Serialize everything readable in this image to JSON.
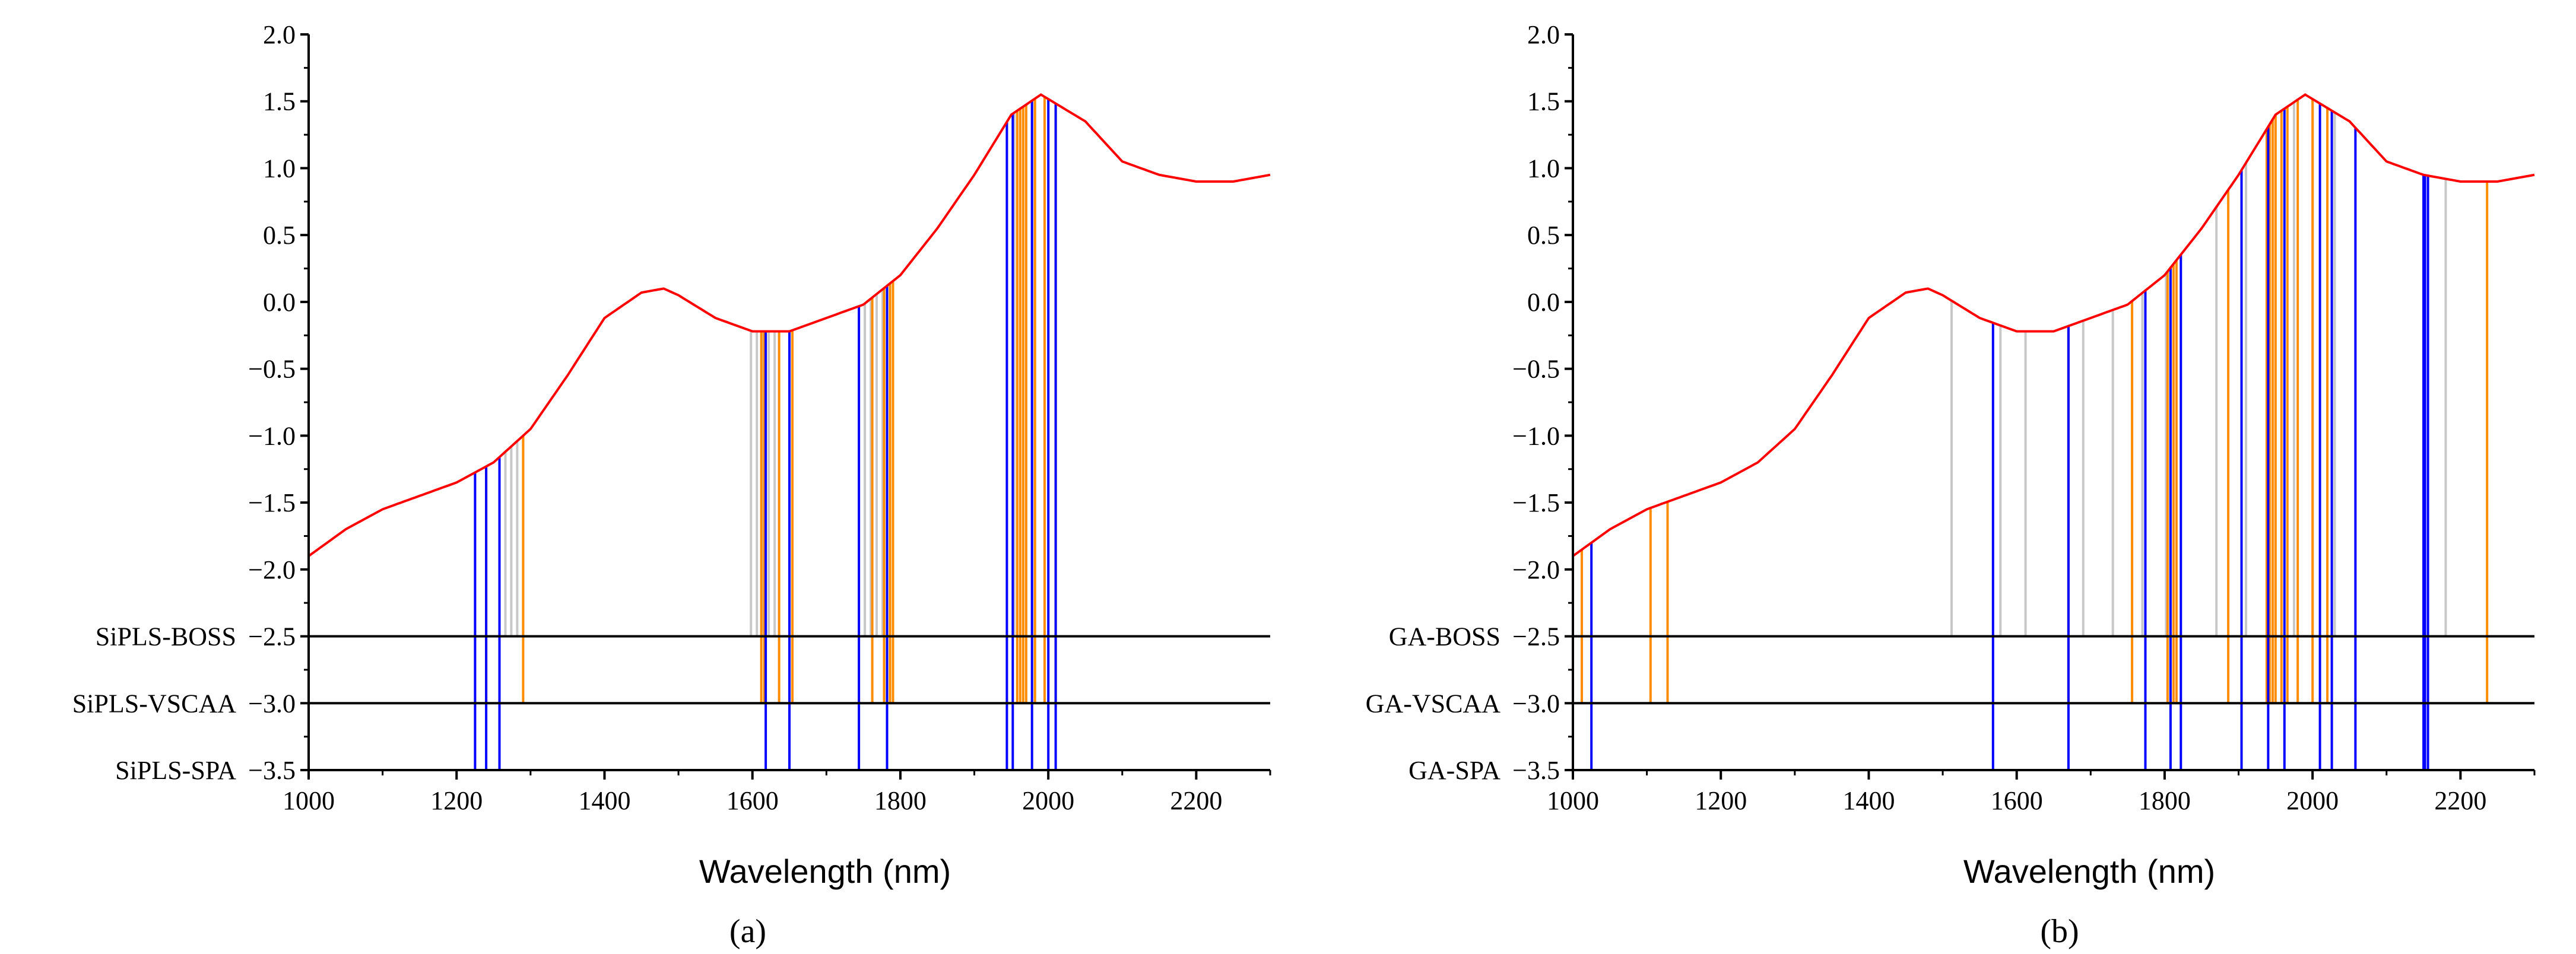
{
  "figure": {
    "colors": {
      "spectrum": "#ff0000",
      "boss": "#c8c8c8",
      "vscaa": "#ff8c00",
      "spa": "#0000ff",
      "axis": "#000000"
    }
  },
  "chart_data": [
    {
      "type": "line",
      "panel_label": "(a)",
      "xlabel": "Wavelength (nm)",
      "xlim": [
        1000,
        2300
      ],
      "xticks": [
        "1000",
        "1200",
        "1400",
        "1600",
        "1800",
        "2000",
        "2200"
      ],
      "ylim": [
        -3.5,
        2.0
      ],
      "yticks": [
        "2.0",
        "1.5",
        "1.0",
        "0.5",
        "0.0",
        "−0.5",
        "−1.0",
        "−1.5",
        "−2.0",
        "−2.5",
        "−3.0",
        "−3.5"
      ],
      "spectrum": {
        "name": "spectrum",
        "x": [
          1000,
          1050,
          1100,
          1150,
          1200,
          1250,
          1300,
          1350,
          1400,
          1450,
          1480,
          1500,
          1550,
          1600,
          1650,
          1700,
          1750,
          1800,
          1850,
          1900,
          1950,
          1990,
          2050,
          2100,
          2150,
          2200,
          2250,
          2300
        ],
        "y": [
          -1.9,
          -1.7,
          -1.55,
          -1.45,
          -1.35,
          -1.2,
          -0.95,
          -0.55,
          -0.12,
          0.07,
          0.1,
          0.05,
          -0.12,
          -0.22,
          -0.22,
          -0.12,
          -0.02,
          0.2,
          0.55,
          0.95,
          1.4,
          1.55,
          1.35,
          1.05,
          0.95,
          0.9,
          0.9,
          0.95
        ]
      },
      "rows": [
        {
          "label": "SiPLS-BOSS",
          "baseline": -2.5,
          "color_key": "boss",
          "wavelengths": [
            1266,
            1274,
            1282,
            1290,
            1598,
            1606,
            1614,
            1622,
            1630,
            1752,
            1760,
            1768,
            1776,
            1954,
            1962,
            1970,
            1978
          ]
        },
        {
          "label": "SiPLS-VSCAA",
          "baseline": -3.0,
          "color_key": "vscaa",
          "wavelengths": [
            1240,
            1290,
            1612,
            1616,
            1636,
            1654,
            1762,
            1778,
            1786,
            1790,
            1958,
            1962,
            1966,
            1970,
            1982,
            1995,
            2010
          ]
        },
        {
          "label": "SiPLS-SPA",
          "baseline": -3.5,
          "color_key": "spa",
          "wavelengths": [
            1225,
            1240,
            1258,
            1618,
            1650,
            1744,
            1782,
            1944,
            1952,
            1978,
            2000,
            2010
          ]
        }
      ],
      "baselines": [
        -2.5,
        -3.0
      ]
    },
    {
      "type": "line",
      "panel_label": "(b)",
      "xlabel": "Wavelength (nm)",
      "xlim": [
        1000,
        2300
      ],
      "xticks": [
        "1000",
        "1200",
        "1400",
        "1600",
        "1800",
        "2000",
        "2200"
      ],
      "ylim": [
        -3.5,
        2.0
      ],
      "yticks": [
        "2.0",
        "1.5",
        "1.0",
        "0.5",
        "0.0",
        "−0.5",
        "−1.0",
        "−1.5",
        "−2.0",
        "−2.5",
        "−3.0",
        "−3.5"
      ],
      "spectrum": {
        "name": "spectrum",
        "x": [
          1000,
          1050,
          1100,
          1150,
          1200,
          1250,
          1300,
          1350,
          1400,
          1450,
          1480,
          1500,
          1550,
          1600,
          1650,
          1700,
          1750,
          1800,
          1850,
          1900,
          1950,
          1990,
          2050,
          2100,
          2150,
          2200,
          2250,
          2300
        ],
        "y": [
          -1.9,
          -1.7,
          -1.55,
          -1.45,
          -1.35,
          -1.2,
          -0.95,
          -0.55,
          -0.12,
          0.07,
          0.1,
          0.05,
          -0.12,
          -0.22,
          -0.22,
          -0.12,
          -0.02,
          0.2,
          0.55,
          0.95,
          1.4,
          1.55,
          1.35,
          1.05,
          0.95,
          0.9,
          0.9,
          0.95
        ]
      },
      "rows": [
        {
          "label": "GA-BOSS",
          "baseline": -2.5,
          "color_key": "boss",
          "wavelengths": [
            1512,
            1578,
            1612,
            1670,
            1690,
            1730,
            1770,
            1802,
            1870,
            1910,
            1950,
            1975,
            2000,
            2030,
            2150,
            2180
          ]
        },
        {
          "label": "GA-VSCAA",
          "baseline": -3.0,
          "color_key": "vscaa",
          "wavelengths": [
            1012,
            1105,
            1128,
            1670,
            1756,
            1804,
            1808,
            1812,
            1816,
            1886,
            1938,
            1942,
            1946,
            1950,
            1958,
            1966,
            1980,
            2000,
            2020,
            2236
          ]
        },
        {
          "label": "GA-SPA",
          "baseline": -3.5,
          "color_key": "spa",
          "wavelengths": [
            1025,
            1568,
            1670,
            1774,
            1808,
            1822,
            1904,
            1940,
            1962,
            2010,
            2026,
            2058,
            2150,
            2152,
            2156
          ]
        }
      ],
      "baselines": [
        -2.5,
        -3.0
      ]
    }
  ]
}
